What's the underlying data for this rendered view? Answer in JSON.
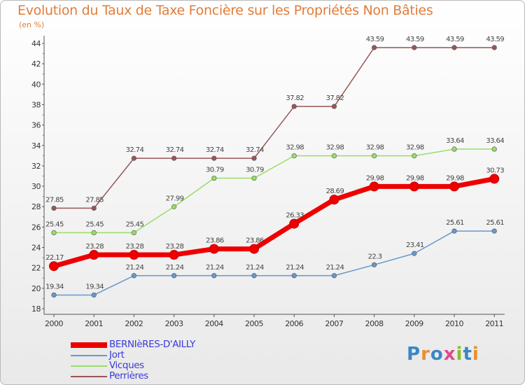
{
  "title": "Evolution du Taux de Taxe Foncière sur les Propriétés Non Bâties",
  "unit_label": "(en %)",
  "logo": {
    "text": "Proxiti",
    "colors": [
      "#3b87c4",
      "#e8902c",
      "#3b87c4",
      "#dd4b8d",
      "#8bbd2c",
      "#3b87c4",
      "#e8902c"
    ]
  },
  "chart_data": {
    "type": "line",
    "x": [
      2000,
      2001,
      2002,
      2003,
      2004,
      2005,
      2006,
      2007,
      2008,
      2009,
      2010,
      2011
    ],
    "ylim": [
      18,
      44
    ],
    "yticks": [
      18,
      20,
      22,
      24,
      26,
      28,
      30,
      32,
      34,
      36,
      38,
      40,
      42,
      44
    ],
    "legend_position": "bottom-left",
    "series": [
      {
        "name": "BERNIèRES-D'AILLY",
        "color": "#ee0000",
        "width": 7,
        "values": [
          22.17,
          23.28,
          23.28,
          23.28,
          23.86,
          23.86,
          26.33,
          28.69,
          29.98,
          29.98,
          29.98,
          30.73
        ],
        "labels": [
          "22.17",
          "23.28",
          "23.28",
          "23.28",
          "23.86",
          "23.86",
          "26.33",
          "28.69",
          "29.98",
          "29.98",
          "29.98",
          "30.73"
        ]
      },
      {
        "name": "Jort",
        "color": "#6699cc",
        "width": 1.5,
        "values": [
          19.34,
          19.34,
          21.24,
          21.24,
          21.24,
          21.24,
          21.24,
          21.24,
          22.3,
          23.41,
          25.61,
          25.61
        ],
        "labels": [
          "19.34",
          "19.34",
          "21.24",
          "21.24",
          "21.24",
          "21.24",
          "21.24",
          "21.24",
          "22.3",
          "23.41",
          "25.61",
          "25.61"
        ]
      },
      {
        "name": "Vicques",
        "color": "#99dd66",
        "width": 1.5,
        "values": [
          25.45,
          25.45,
          25.45,
          27.99,
          30.79,
          30.79,
          32.98,
          32.98,
          32.98,
          32.98,
          33.64,
          33.64
        ],
        "labels": [
          "25.45",
          "25.45",
          "25.45",
          "27.99",
          "30.79",
          "30.79",
          "32.98",
          "32.98",
          "32.98",
          "32.98",
          "33.64",
          "33.64"
        ]
      },
      {
        "name": "Perrières",
        "color": "#995555",
        "width": 1.5,
        "values": [
          27.85,
          27.85,
          32.74,
          32.74,
          32.74,
          32.74,
          37.82,
          37.82,
          43.59,
          43.59,
          43.59,
          43.59
        ],
        "labels": [
          "27.85",
          "27.85",
          "32.74",
          "32.74",
          "32.74",
          "32.74",
          "37.82",
          "37.82",
          "43.59",
          "43.59",
          "43.59",
          "43.59"
        ]
      }
    ]
  }
}
